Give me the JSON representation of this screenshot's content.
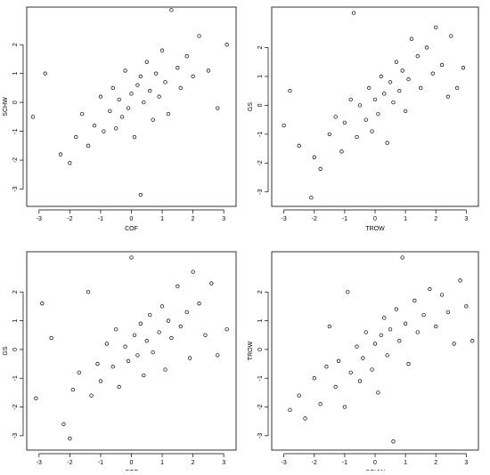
{
  "chart_data": [
    {
      "type": "scatter",
      "xlabel": "COF",
      "ylabel": "SCHW",
      "xlim": [
        -3.4,
        3.4
      ],
      "ylim": [
        -3.6,
        3.3
      ],
      "xticks": [
        -3,
        -2,
        -1,
        0,
        1,
        2,
        3
      ],
      "yticks": [
        -3,
        -2,
        -1,
        0,
        1,
        2
      ],
      "color": "#000000",
      "x": [
        -3.2,
        -2.8,
        -2.3,
        -2.0,
        -1.8,
        -1.6,
        -1.4,
        -1.2,
        -1.0,
        -0.9,
        -0.7,
        -0.6,
        -0.5,
        -0.4,
        -0.3,
        -0.2,
        -0.1,
        0,
        0.1,
        0.2,
        0.3,
        0.3,
        0.4,
        0.5,
        0.6,
        0.7,
        0.8,
        0.9,
        1.0,
        1.1,
        1.2,
        1.3,
        1.5,
        1.6,
        1.8,
        2.0,
        2.2,
        2.5,
        2.8,
        3.1
      ],
      "values": [
        -0.5,
        1.0,
        -1.8,
        -2.1,
        -1.2,
        -0.4,
        -1.5,
        -0.8,
        0.2,
        -1.0,
        -0.3,
        0.5,
        -0.9,
        0.1,
        -0.5,
        1.1,
        -0.2,
        0.3,
        -1.2,
        0.6,
        -3.2,
        0.9,
        0.0,
        1.4,
        0.4,
        -0.6,
        1.0,
        0.2,
        1.8,
        0.7,
        -0.4,
        3.2,
        1.2,
        0.5,
        1.6,
        0.9,
        2.3,
        1.1,
        -0.2,
        2.0
      ]
    },
    {
      "type": "scatter",
      "xlabel": "TROW",
      "ylabel": "GS",
      "xlim": [
        -3.4,
        3.4
      ],
      "ylim": [
        -3.5,
        3.4
      ],
      "xticks": [
        -3,
        -2,
        -1,
        0,
        1,
        2,
        3
      ],
      "yticks": [
        -3,
        -2,
        -1,
        0,
        1,
        2
      ],
      "color": "#000000",
      "x": [
        -3.0,
        -2.8,
        -2.5,
        -2.1,
        -2.0,
        -1.8,
        -1.5,
        -1.3,
        -1.1,
        -1.0,
        -0.8,
        -0.7,
        -0.6,
        -0.5,
        -0.3,
        -0.2,
        -0.1,
        0,
        0.1,
        0.2,
        0.3,
        0.4,
        0.5,
        0.6,
        0.7,
        0.8,
        0.9,
        1.0,
        1.1,
        1.2,
        1.4,
        1.5,
        1.7,
        1.9,
        2.0,
        2.2,
        2.4,
        2.5,
        2.7,
        2.9
      ],
      "values": [
        -0.7,
        0.5,
        -1.4,
        -3.2,
        -1.8,
        -2.2,
        -1.0,
        -0.4,
        -1.6,
        -0.6,
        0.2,
        3.2,
        -1.1,
        0.0,
        -0.5,
        0.6,
        -0.9,
        0.2,
        -0.3,
        1.0,
        0.4,
        -1.3,
        0.8,
        0.1,
        1.5,
        0.5,
        1.2,
        -0.2,
        0.9,
        2.3,
        1.7,
        0.6,
        2.0,
        1.1,
        2.7,
        1.4,
        0.3,
        2.4,
        0.6,
        1.3
      ]
    },
    {
      "type": "scatter",
      "xlabel": "COF",
      "ylabel": "GS",
      "xlim": [
        -3.4,
        3.4
      ],
      "ylim": [
        -3.5,
        3.4
      ],
      "xticks": [
        -3,
        -2,
        -1,
        0,
        1,
        2,
        3
      ],
      "yticks": [
        -3,
        -2,
        -1,
        0,
        1,
        2
      ],
      "color": "#000000",
      "x": [
        -3.1,
        -2.9,
        -2.6,
        -2.2,
        -2.0,
        -1.9,
        -1.7,
        -1.4,
        -1.3,
        -1.1,
        -1.0,
        -0.8,
        -0.6,
        -0.5,
        -0.4,
        -0.2,
        -0.1,
        0.0,
        0.1,
        0.2,
        0.3,
        0.4,
        0.5,
        0.6,
        0.7,
        0.9,
        1.0,
        1.1,
        1.2,
        1.3,
        1.5,
        1.6,
        1.8,
        1.9,
        2.0,
        2.2,
        2.4,
        2.6,
        2.8,
        3.1
      ],
      "values": [
        -1.7,
        1.6,
        0.4,
        -2.6,
        -3.1,
        -1.4,
        -0.8,
        2.0,
        -1.6,
        -0.5,
        -1.1,
        0.2,
        -0.6,
        0.7,
        -1.3,
        0.1,
        -0.4,
        3.2,
        0.5,
        -0.2,
        0.9,
        -0.9,
        0.3,
        1.2,
        -0.1,
        0.6,
        1.5,
        -0.7,
        1.0,
        0.4,
        2.2,
        0.8,
        1.3,
        -0.3,
        2.7,
        1.6,
        0.5,
        2.3,
        -0.2,
        0.7
      ]
    },
    {
      "type": "scatter",
      "xlabel": "SCHW",
      "ylabel": "TROW",
      "xlim": [
        -3.4,
        3.4
      ],
      "ylim": [
        -3.5,
        3.4
      ],
      "xticks": [
        -3,
        -2,
        -1,
        0,
        1,
        2,
        3
      ],
      "yticks": [
        -3,
        -2,
        -1,
        0,
        1,
        2
      ],
      "color": "#000000",
      "x": [
        -2.8,
        -2.5,
        -2.3,
        -2.0,
        -1.8,
        -1.6,
        -1.5,
        -1.3,
        -1.2,
        -1.0,
        -0.9,
        -0.8,
        -0.6,
        -0.5,
        -0.4,
        -0.3,
        -0.1,
        0.0,
        0.1,
        0.2,
        0.3,
        0.4,
        0.5,
        0.6,
        0.7,
        0.8,
        0.9,
        1.0,
        1.1,
        1.3,
        1.4,
        1.6,
        1.8,
        2.0,
        2.2,
        2.4,
        2.6,
        2.8,
        3.0,
        3.2
      ],
      "values": [
        -2.1,
        -1.6,
        -2.4,
        -1.0,
        -1.9,
        -0.6,
        0.8,
        -1.3,
        -0.4,
        -2.0,
        2.0,
        -0.8,
        0.1,
        -1.1,
        -0.3,
        0.6,
        -0.7,
        0.2,
        -1.5,
        0.5,
        1.1,
        -0.2,
        0.7,
        -3.2,
        1.4,
        0.3,
        3.2,
        0.9,
        -0.5,
        1.7,
        0.6,
        1.2,
        2.1,
        0.8,
        1.9,
        1.3,
        0.2,
        2.4,
        1.5,
        0.3
      ]
    }
  ]
}
